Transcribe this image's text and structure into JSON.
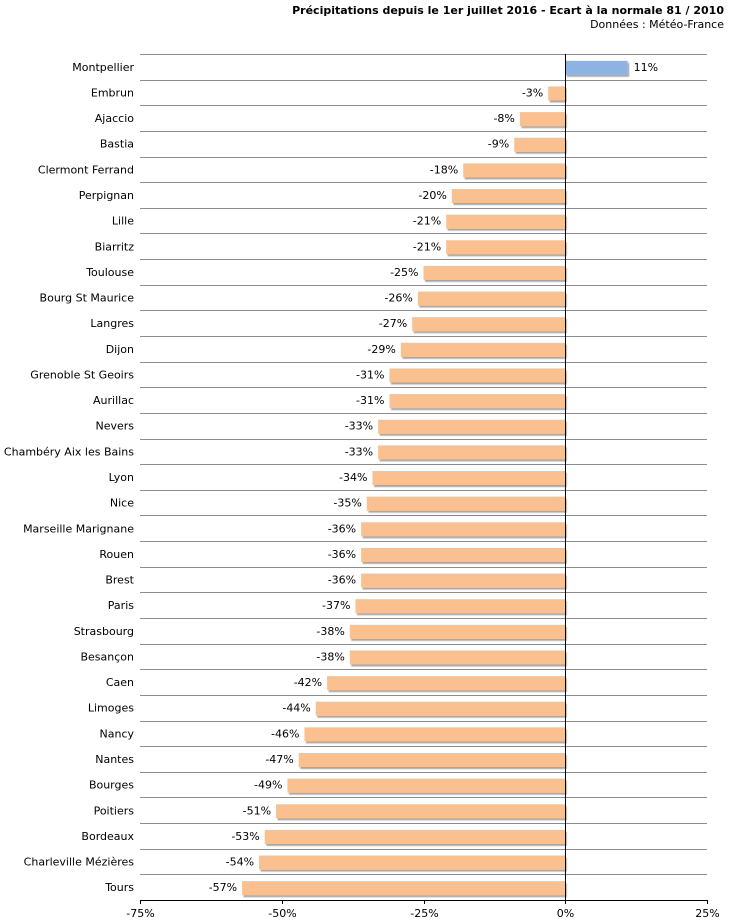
{
  "chart_data": {
    "type": "bar",
    "orientation": "horizontal",
    "title": "Précipitations depuis le 1er juillet 2016 - Ecart à la normale 81 / 2010",
    "subtitle": "Données : Météo-France",
    "xlabel": "",
    "ylabel": "",
    "xlim": [
      -75,
      25
    ],
    "xticks": [
      -75,
      -50,
      -25,
      0,
      25
    ],
    "xtick_labels": [
      "-75%",
      "-50%",
      "-25%",
      "0%",
      "25%"
    ],
    "grid": "horizontal",
    "positive_color": "#8db3e2",
    "negative_color": "#fac090",
    "categories": [
      "Montpellier",
      "Embrun",
      "Ajaccio",
      "Bastia",
      "Clermont Ferrand",
      "Perpignan",
      "Lille",
      "Biarritz",
      "Toulouse",
      "Bourg St Maurice",
      "Langres",
      "Dijon",
      "Grenoble St Geoirs",
      "Aurillac",
      "Nevers",
      "Chambéry Aix les Bains",
      "Lyon",
      "Nice",
      "Marseille Marignane",
      "Rouen",
      "Brest",
      "Paris",
      "Strasbourg",
      "Besançon",
      "Caen",
      "Limoges",
      "Nancy",
      "Nantes",
      "Bourges",
      "Poitiers",
      "Bordeaux",
      "Charleville Mézières",
      "Tours"
    ],
    "values": [
      11,
      -3,
      -8,
      -9,
      -18,
      -20,
      -21,
      -21,
      -25,
      -26,
      -27,
      -29,
      -31,
      -31,
      -33,
      -33,
      -34,
      -35,
      -36,
      -36,
      -36,
      -37,
      -38,
      -38,
      -42,
      -44,
      -46,
      -47,
      -49,
      -51,
      -53,
      -54,
      -57
    ],
    "value_labels": [
      "11%",
      "-3%",
      "-8%",
      "-9%",
      "-18%",
      "-20%",
      "-21%",
      "-21%",
      "-25%",
      "-26%",
      "-27%",
      "-29%",
      "-31%",
      "-31%",
      "-33%",
      "-33%",
      "-34%",
      "-35%",
      "-36%",
      "-36%",
      "-36%",
      "-37%",
      "-38%",
      "-38%",
      "-42%",
      "-44%",
      "-46%",
      "-47%",
      "-49%",
      "-51%",
      "-53%",
      "-54%",
      "-57%"
    ]
  }
}
